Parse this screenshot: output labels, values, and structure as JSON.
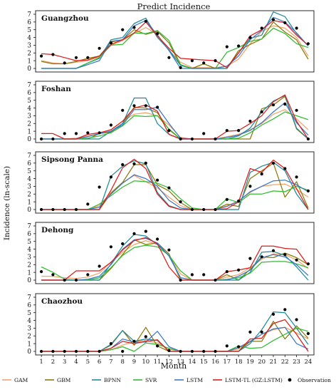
{
  "title": "Predict Incidence",
  "ylabel": "Incidence (ln-scale)",
  "xlabel": "Month",
  "legend": {
    "placement": "bottom",
    "entries": [
      {
        "name": "GAM",
        "color": "#f5a26a"
      },
      {
        "name": "GBM",
        "color": "#8a7a0a"
      },
      {
        "name": "BPNN",
        "color": "#1f8a9a"
      },
      {
        "name": "SVR",
        "color": "#33bb33"
      },
      {
        "name": "LSTM",
        "color": "#3b79c6"
      },
      {
        "name": "LSTM-TL (GZ:LSTM)",
        "color": "#dd1c1c"
      },
      {
        "name": "Observation",
        "color": "#000000",
        "marker": "dot"
      }
    ]
  },
  "chart_data": [
    {
      "type": "line",
      "title": "Guangzhou",
      "ylim": [
        0,
        7
      ],
      "yticks": [
        0,
        1,
        2,
        3,
        4,
        5,
        6,
        7
      ],
      "x": [
        1,
        2,
        3,
        4,
        5,
        6,
        7,
        8,
        9,
        10,
        11,
        12,
        13,
        14,
        15,
        16,
        17,
        18,
        19,
        20,
        21,
        22,
        23,
        24
      ],
      "series": [
        {
          "name": "GAM",
          "values": [
            1.0,
            0.7,
            0.6,
            0.8,
            1.0,
            1.5,
            3.0,
            3.6,
            4.5,
            5.3,
            4.4,
            2.3,
            0.8,
            0.1,
            0.1,
            0.1,
            0.3,
            1.2,
            3.2,
            4.8,
            5.5,
            5.2,
            4.0,
            1.6
          ]
        },
        {
          "name": "GBM",
          "values": [
            0.9,
            0.6,
            0.6,
            0.9,
            1.3,
            1.6,
            3.4,
            3.7,
            5.0,
            4.4,
            4.8,
            3.3,
            0.4,
            0.0,
            0.6,
            0.0,
            0.0,
            2.3,
            3.1,
            3.8,
            6.0,
            4.7,
            3.7,
            1.2
          ]
        },
        {
          "name": "BPNN",
          "values": [
            0.0,
            0.0,
            0.0,
            0.0,
            0.7,
            1.3,
            3.7,
            4.0,
            5.8,
            6.5,
            4.0,
            2.4,
            0.4,
            0.0,
            0.0,
            0.0,
            0.0,
            2.0,
            3.9,
            4.3,
            7.3,
            6.7,
            4.5,
            2.9
          ]
        },
        {
          "name": "SVR",
          "values": [
            0.0,
            0.0,
            0.0,
            0.0,
            0.7,
            1.4,
            3.0,
            3.1,
            4.6,
            4.5,
            4.9,
            3.6,
            0.5,
            0.0,
            0.0,
            0.0,
            2.1,
            2.7,
            3.5,
            3.8,
            5.2,
            4.5,
            3.2,
            2.7
          ]
        },
        {
          "name": "LSTM",
          "values": [
            0.0,
            0.0,
            0.0,
            0.0,
            0.5,
            1.0,
            3.5,
            3.7,
            5.5,
            6.2,
            4.3,
            2.3,
            0.0,
            0.0,
            0.0,
            0.0,
            0.3,
            1.6,
            3.7,
            4.9,
            6.6,
            6.0,
            4.6,
            2.9
          ]
        },
        {
          "name": "LSTM-TL (GZ:LSTM)",
          "values": [
            1.9,
            1.8,
            1.4,
            1.0,
            1.1,
            1.6,
            3.1,
            3.7,
            4.6,
            6.0,
            4.2,
            2.6,
            1.3,
            1.2,
            1.1,
            1.0,
            0.1,
            2.0,
            4.2,
            5.0,
            6.2,
            5.9,
            4.3,
            3.0
          ]
        }
      ],
      "observation": [
        1.6,
        1.8,
        0.7,
        1.4,
        1.4,
        2.6,
        3.3,
        5.0,
        5.3,
        6.1,
        4.5,
        1.4,
        0.1,
        1.0,
        0.7,
        1.0,
        2.8,
        2.9,
        4.0,
        5.2,
        6.3,
        5.9,
        5.2,
        3.2
      ]
    },
    {
      "type": "line",
      "title": "Foshan",
      "ylim": [
        0,
        7
      ],
      "yticks": [
        0,
        1,
        2,
        3,
        4,
        5,
        6,
        7
      ],
      "x": [
        1,
        2,
        3,
        4,
        5,
        6,
        7,
        8,
        9,
        10,
        11,
        12,
        13,
        14,
        15,
        16,
        17,
        18,
        19,
        20,
        21,
        22,
        23,
        24
      ],
      "series": [
        {
          "name": "GAM",
          "values": [
            0.0,
            0.0,
            0.0,
            0.1,
            0.4,
            0.7,
            1.2,
            2.3,
            3.2,
            3.4,
            3.0,
            1.8,
            0.2,
            0.0,
            0.0,
            0.0,
            0.3,
            0.6,
            1.2,
            2.0,
            3.2,
            3.8,
            2.6,
            1.2
          ]
        },
        {
          "name": "GBM",
          "values": [
            0.0,
            0.0,
            0.0,
            0.0,
            0.0,
            0.7,
            0.9,
            2.0,
            4.1,
            4.0,
            3.4,
            1.2,
            0.0,
            0.0,
            0.0,
            0.0,
            0.0,
            0.0,
            0.0,
            3.9,
            4.4,
            5.5,
            1.3,
            0.0
          ]
        },
        {
          "name": "BPNN",
          "values": [
            0.0,
            0.0,
            0.0,
            0.0,
            0.0,
            0.0,
            1.0,
            2.0,
            5.3,
            5.3,
            2.0,
            0.6,
            0.0,
            0.0,
            0.0,
            0.0,
            0.0,
            0.4,
            1.4,
            3.5,
            4.9,
            5.6,
            1.4,
            0.0
          ]
        },
        {
          "name": "SVR",
          "values": [
            0.0,
            0.0,
            0.0,
            0.0,
            0.1,
            0.4,
            0.8,
            1.7,
            3.0,
            2.9,
            3.0,
            1.3,
            0.0,
            0.0,
            0.0,
            0.0,
            0.0,
            0.1,
            0.8,
            1.8,
            2.6,
            3.5,
            3.0,
            2.5
          ]
        },
        {
          "name": "LSTM",
          "values": [
            0.0,
            0.0,
            0.0,
            0.0,
            0.3,
            0.7,
            1.0,
            1.8,
            3.8,
            3.8,
            4.1,
            2.0,
            0.1,
            0.0,
            0.0,
            0.0,
            0.2,
            0.5,
            1.1,
            2.1,
            3.5,
            4.7,
            2.1,
            0.5
          ]
        },
        {
          "name": "LSTM-TL (GZ:LSTM)",
          "values": [
            0.7,
            0.7,
            0.0,
            0.0,
            0.6,
            0.8,
            1.2,
            2.3,
            4.0,
            4.4,
            3.6,
            0.6,
            0.0,
            0.0,
            0.0,
            0.0,
            1.0,
            1.1,
            2.0,
            3.0,
            4.8,
            5.7,
            2.3,
            0.0
          ]
        }
      ],
      "observation": [
        0.0,
        0.0,
        0.7,
        0.7,
        0.8,
        0.8,
        1.8,
        3.7,
        4.3,
        4.3,
        4.1,
        1.1,
        0.0,
        0.0,
        0.7,
        0.0,
        1.1,
        1.1,
        2.3,
        3.5,
        4.4,
        4.5,
        3.7,
        0.0
      ]
    },
    {
      "type": "line",
      "title": "Sipsong Panna",
      "ylim": [
        0,
        7
      ],
      "yticks": [
        0,
        1,
        2,
        3,
        4,
        5,
        6,
        7
      ],
      "x": [
        1,
        2,
        3,
        4,
        5,
        6,
        7,
        8,
        9,
        10,
        11,
        12,
        13,
        14,
        15,
        16,
        17,
        18,
        19,
        20,
        21,
        22,
        23,
        24
      ],
      "series": [
        {
          "name": "GAM",
          "values": [
            0.0,
            0.0,
            0.0,
            0.0,
            0.0,
            0.5,
            2.2,
            3.5,
            4.4,
            3.6,
            2.8,
            1.6,
            0.5,
            0.0,
            0.0,
            0.0,
            0.5,
            1.1,
            2.2,
            3.0,
            3.2,
            3.3,
            2.6,
            1.6
          ]
        },
        {
          "name": "GBM",
          "values": [
            0.0,
            0.0,
            0.0,
            0.0,
            0.0,
            0.0,
            2.1,
            3.5,
            5.8,
            5.8,
            3.2,
            2.4,
            0.9,
            0.0,
            0.0,
            0.0,
            0.7,
            0.4,
            4.0,
            5.0,
            6.0,
            1.6,
            3.6,
            0.2
          ]
        },
        {
          "name": "BPNN",
          "values": [
            0.0,
            0.0,
            0.0,
            0.0,
            0.0,
            0.0,
            4.3,
            5.6,
            6.3,
            5.9,
            2.2,
            0.5,
            0.0,
            0.0,
            0.0,
            0.0,
            0.0,
            0.0,
            4.8,
            5.6,
            6.1,
            5.0,
            2.0,
            0.0
          ]
        },
        {
          "name": "SVR",
          "values": [
            0.0,
            0.0,
            0.0,
            0.0,
            0.0,
            0.7,
            1.8,
            2.9,
            3.7,
            3.6,
            3.4,
            2.8,
            1.4,
            0.2,
            0.0,
            0.0,
            1.4,
            0.9,
            2.0,
            2.0,
            2.4,
            2.3,
            3.0,
            2.5
          ]
        },
        {
          "name": "LSTM",
          "values": [
            0.0,
            0.0,
            0.0,
            0.0,
            0.0,
            0.3,
            2.0,
            3.4,
            4.5,
            4.0,
            3.0,
            1.2,
            0.2,
            0.0,
            0.0,
            0.0,
            0.4,
            1.1,
            2.3,
            3.0,
            3.7,
            3.8,
            3.2,
            2.3
          ]
        },
        {
          "name": "LSTM-TL (GZ:LSTM)",
          "values": [
            0.0,
            0.0,
            0.0,
            0.0,
            0.0,
            0.0,
            2.5,
            5.4,
            6.5,
            5.3,
            2.0,
            0.4,
            0.0,
            0.0,
            0.0,
            0.0,
            0.1,
            1.0,
            5.3,
            4.8,
            6.4,
            5.3,
            2.7,
            0.0
          ]
        }
      ],
      "observation": [
        0.0,
        0.0,
        0.0,
        0.0,
        0.7,
        2.9,
        4.2,
        5.8,
        5.9,
        6.0,
        3.8,
        2.8,
        1.0,
        0.0,
        0.0,
        0.0,
        1.3,
        1.1,
        3.0,
        4.6,
        6.0,
        5.3,
        4.2,
        2.4
      ]
    },
    {
      "type": "line",
      "title": "Dehong",
      "ylim": [
        0,
        7
      ],
      "yticks": [
        0,
        1,
        2,
        3,
        4,
        5,
        6,
        7
      ],
      "x": [
        1,
        2,
        3,
        4,
        5,
        6,
        7,
        8,
        9,
        10,
        11,
        12,
        13,
        14,
        15,
        16,
        17,
        18,
        19,
        20,
        21,
        22,
        23,
        24
      ],
      "series": [
        {
          "name": "GAM",
          "values": [
            0.5,
            0.5,
            0.3,
            0.2,
            0.4,
            0.9,
            2.3,
            3.6,
            4.6,
            5.1,
            4.6,
            3.2,
            0.8,
            0.0,
            0.0,
            0.0,
            0.4,
            0.7,
            1.6,
            2.7,
            3.4,
            3.3,
            2.6,
            1.5
          ]
        },
        {
          "name": "GBM",
          "values": [
            0.0,
            0.0,
            0.0,
            0.0,
            0.0,
            0.0,
            1.5,
            3.3,
            5.2,
            4.6,
            4.8,
            3.4,
            0.0,
            0.0,
            0.0,
            0.0,
            0.7,
            0.0,
            1.4,
            3.0,
            2.9,
            3.5,
            2.9,
            2.0
          ]
        },
        {
          "name": "BPNN",
          "values": [
            0.0,
            0.0,
            0.0,
            0.0,
            0.0,
            0.0,
            2.1,
            4.4,
            5.9,
            5.7,
            4.6,
            3.2,
            0.3,
            0.0,
            0.0,
            0.0,
            0.0,
            0.0,
            1.0,
            3.6,
            3.7,
            3.2,
            1.7,
            0.0
          ]
        },
        {
          "name": "SVR",
          "values": [
            1.7,
            1.0,
            0.1,
            0.0,
            0.0,
            0.3,
            1.6,
            3.2,
            4.2,
            4.5,
            4.3,
            3.2,
            1.2,
            0.0,
            0.0,
            0.0,
            0.1,
            0.3,
            0.9,
            2.3,
            2.4,
            2.4,
            2.1,
            1.6
          ]
        },
        {
          "name": "LSTM",
          "values": [
            0.0,
            0.0,
            0.0,
            0.0,
            0.1,
            0.5,
            2.0,
            4.0,
            5.2,
            5.4,
            4.8,
            3.1,
            0.3,
            0.0,
            0.0,
            0.0,
            0.0,
            0.5,
            1.3,
            2.9,
            3.3,
            3.0,
            2.0,
            0.6
          ]
        },
        {
          "name": "LSTM-TL (GZ:LSTM)",
          "values": [
            0.0,
            0.0,
            0.0,
            1.2,
            1.2,
            1.2,
            2.3,
            3.9,
            5.1,
            5.5,
            4.7,
            1.7,
            0.0,
            0.0,
            0.0,
            0.0,
            1.1,
            1.3,
            1.6,
            4.4,
            4.4,
            4.1,
            4.0,
            1.9
          ]
        }
      ],
      "observation": [
        1.1,
        0.7,
        0.0,
        0.0,
        0.7,
        1.8,
        4.3,
        4.7,
        6.0,
        6.3,
        5.3,
        3.9,
        0.0,
        0.7,
        0.7,
        0.0,
        1.1,
        1.3,
        2.8,
        3.0,
        3.8,
        3.3,
        2.6,
        2.1
      ]
    },
    {
      "type": "line",
      "title": "Chaozhou",
      "ylim": [
        0,
        7
      ],
      "yticks": [
        0,
        1,
        2,
        3,
        4,
        5,
        6,
        7
      ],
      "x": [
        1,
        2,
        3,
        4,
        5,
        6,
        7,
        8,
        9,
        10,
        11,
        12,
        13,
        14,
        15,
        16,
        17,
        18,
        19,
        20,
        21,
        22,
        23,
        24
      ],
      "series": [
        {
          "name": "GAM",
          "values": [
            0.0,
            0.0,
            0.0,
            0.0,
            0.0,
            0.0,
            0.2,
            0.8,
            1.3,
            1.4,
            1.1,
            0.3,
            0.0,
            0.0,
            0.0,
            0.0,
            0.0,
            0.3,
            1.2,
            2.2,
            2.8,
            3.1,
            2.4,
            1.6
          ]
        },
        {
          "name": "GBM",
          "values": [
            0.0,
            0.0,
            0.0,
            0.0,
            0.0,
            0.0,
            0.8,
            2.7,
            0.8,
            3.1,
            0.7,
            0.0,
            0.0,
            0.0,
            0.0,
            0.0,
            0.0,
            0.0,
            1.3,
            1.3,
            3.9,
            1.6,
            3.3,
            1.7
          ]
        },
        {
          "name": "BPNN",
          "values": [
            0.0,
            0.0,
            0.0,
            0.0,
            0.0,
            0.0,
            0.9,
            2.7,
            1.3,
            1.6,
            1.4,
            0.0,
            0.0,
            0.0,
            0.0,
            0.0,
            0.0,
            0.0,
            1.0,
            2.8,
            5.1,
            5.0,
            3.0,
            0.9
          ]
        },
        {
          "name": "SVR",
          "values": [
            0.0,
            0.0,
            0.0,
            0.0,
            0.0,
            0.0,
            0.2,
            0.6,
            0.0,
            1.1,
            0.9,
            0.4,
            0.0,
            0.0,
            0.0,
            0.0,
            0.0,
            0.7,
            0.4,
            0.5,
            1.4,
            2.2,
            3.0,
            2.6
          ]
        },
        {
          "name": "LSTM",
          "values": [
            0.0,
            0.0,
            0.0,
            0.0,
            0.0,
            0.0,
            0.4,
            1.6,
            1.2,
            1.2,
            2.6,
            0.6,
            0.0,
            0.0,
            0.0,
            0.0,
            0.0,
            0.5,
            1.3,
            2.2,
            2.9,
            3.1,
            1.0,
            0.3
          ]
        },
        {
          "name": "LSTM-TL (GZ:LSTM)",
          "values": [
            0.0,
            0.0,
            0.0,
            0.0,
            0.0,
            0.0,
            0.4,
            1.3,
            1.0,
            1.3,
            1.5,
            0.0,
            0.0,
            0.0,
            0.0,
            0.0,
            0.0,
            0.0,
            1.6,
            1.7,
            3.6,
            4.1,
            2.2,
            0.0
          ]
        }
      ],
      "observation": [
        0.0,
        0.0,
        0.0,
        0.0,
        0.0,
        0.0,
        1.0,
        0.0,
        1.3,
        1.9,
        0.7,
        0.1,
        0.0,
        0.0,
        0.0,
        0.0,
        0.7,
        0.6,
        2.5,
        2.5,
        4.8,
        5.4,
        4.1,
        2.3
      ]
    }
  ]
}
